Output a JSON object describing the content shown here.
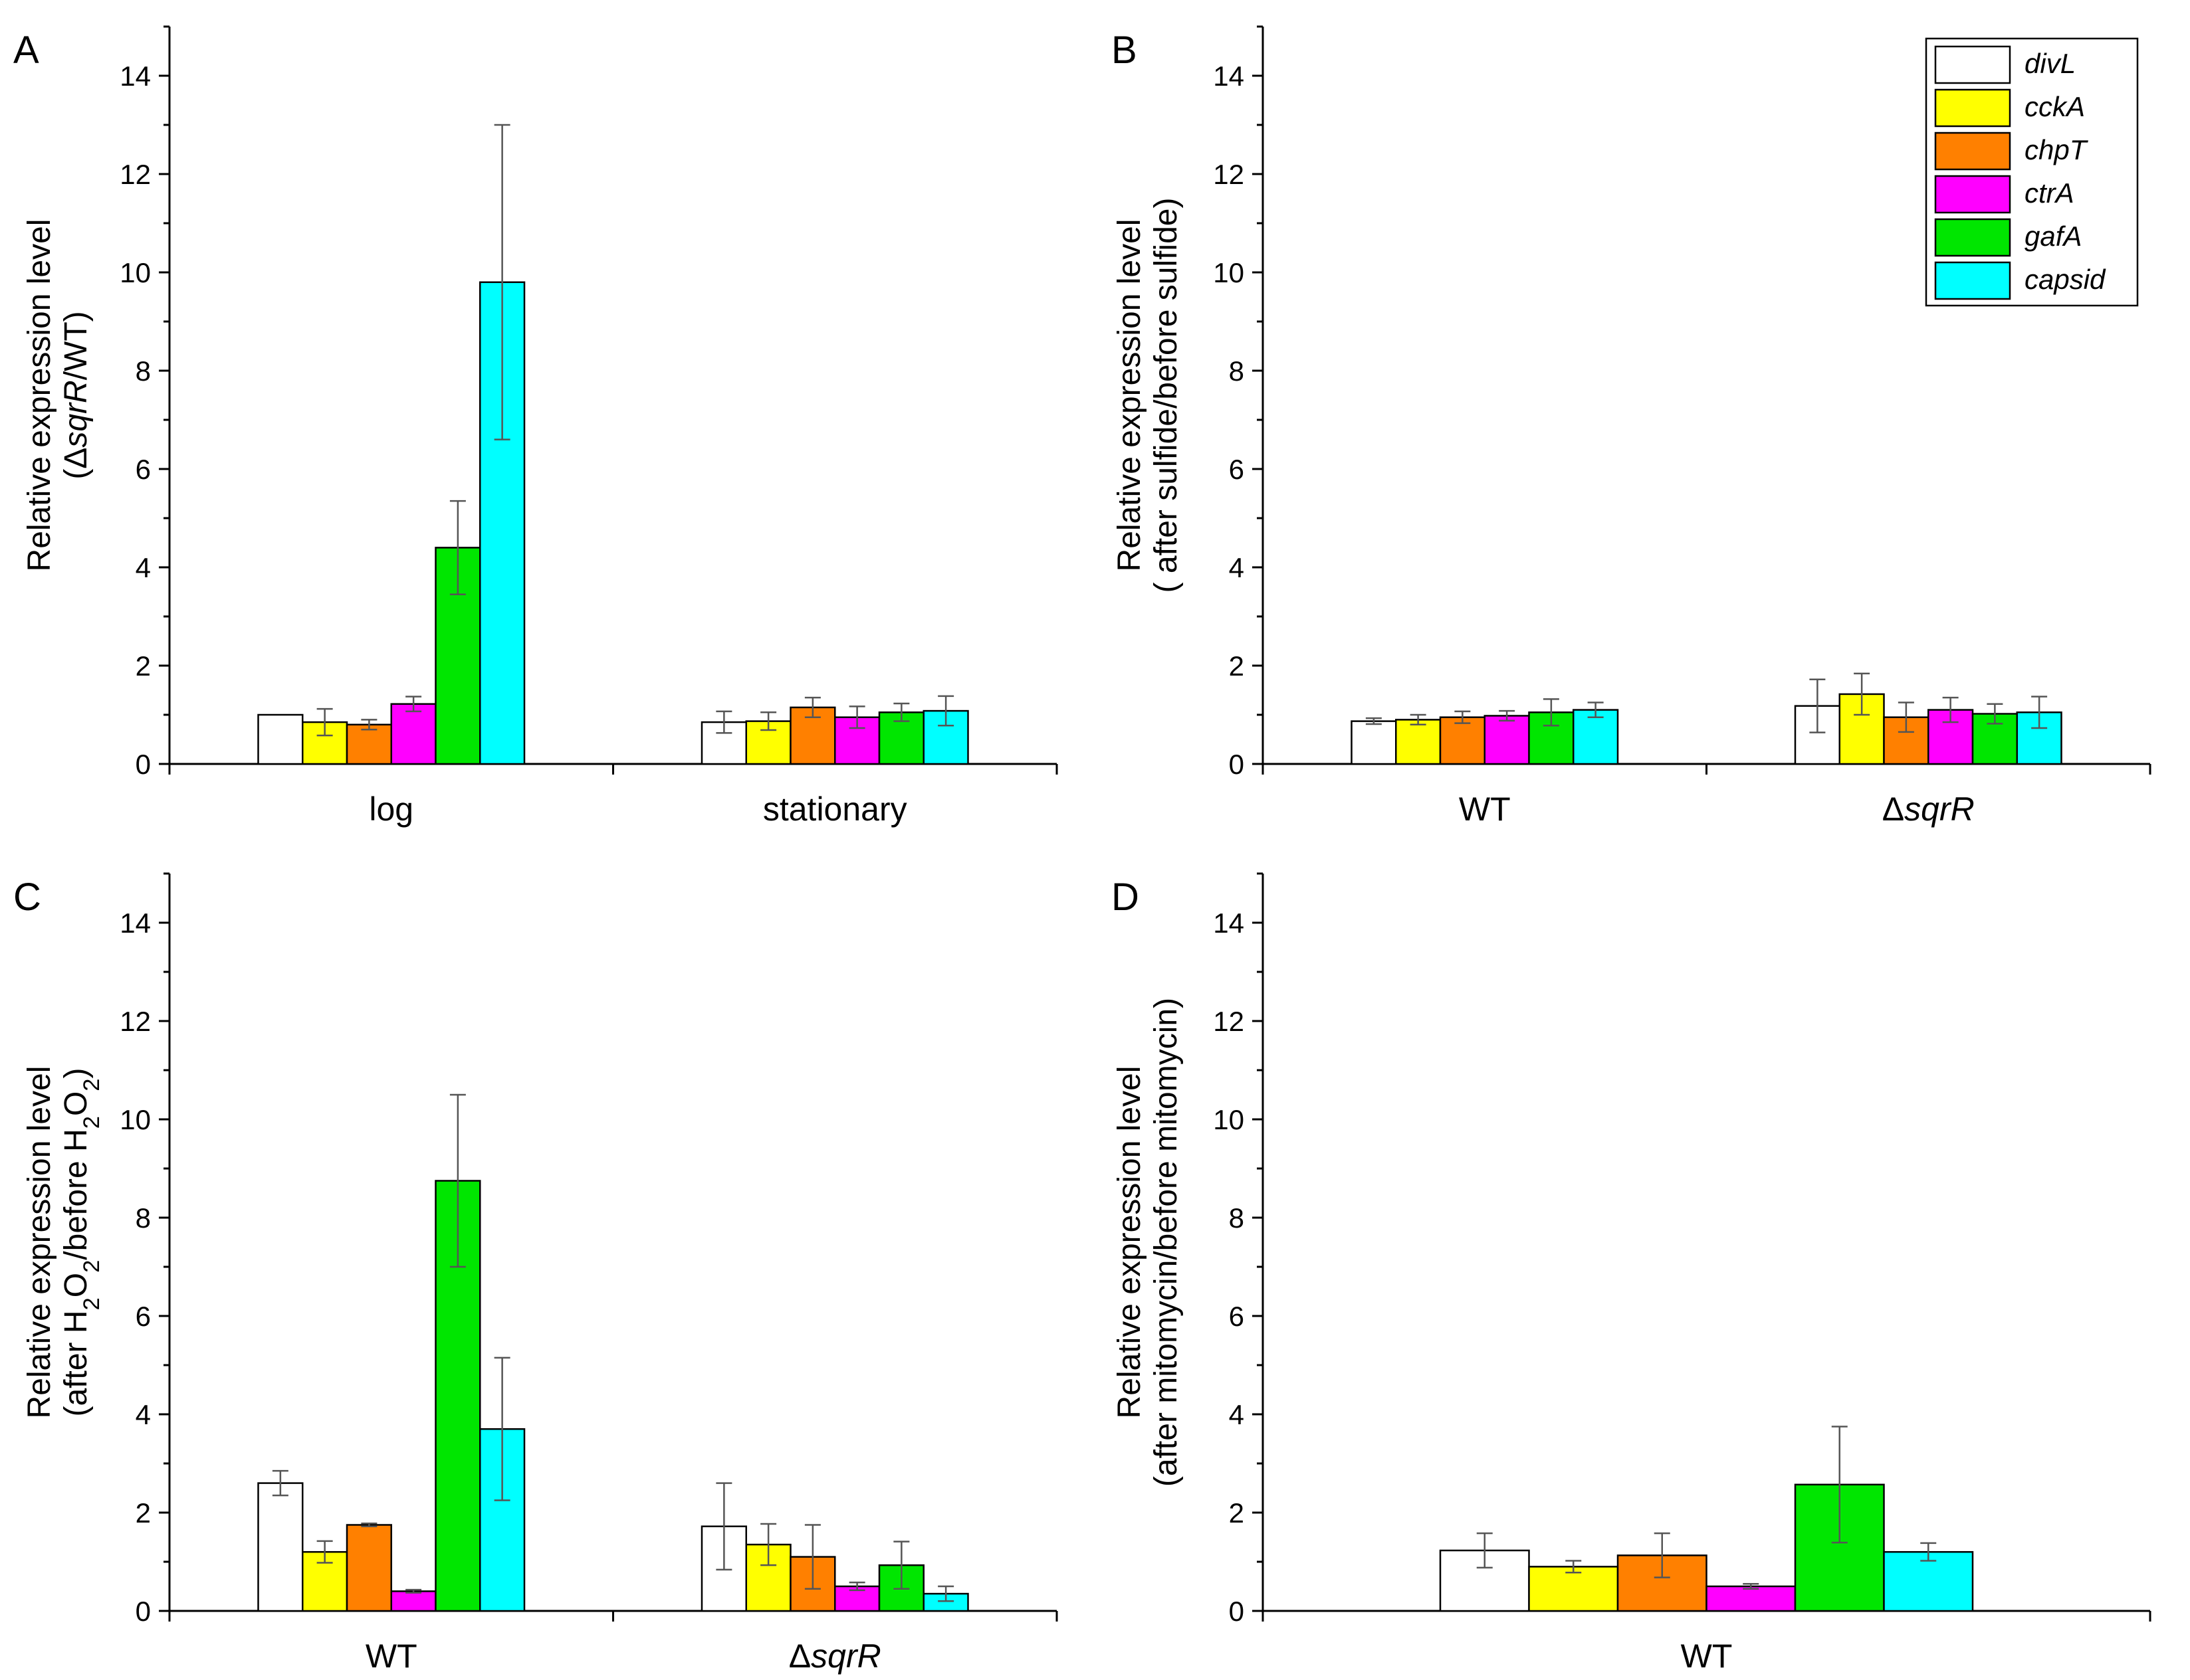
{
  "legend": {
    "genes": [
      "divL",
      "cckA",
      "chpT",
      "ctrA",
      "gafA",
      "capsid"
    ],
    "colors": [
      "#ffffff",
      "#ffff00",
      "#ff8000",
      "#ff00ff",
      "#00e600",
      "#00ffff"
    ]
  },
  "chart_data": [
    {
      "panel": "A",
      "type": "bar",
      "ylabel_lines": [
        [
          {
            "t": "Relative expression level"
          }
        ],
        [
          {
            "t": "(Δ"
          },
          {
            "t": "sqrR",
            "i": true
          },
          {
            "t": "/WT)"
          }
        ]
      ],
      "ylim": [
        0,
        15
      ],
      "yticks": [
        0,
        2,
        4,
        6,
        8,
        10,
        12,
        14
      ],
      "categories": [
        [
          {
            "t": "log"
          }
        ],
        [
          {
            "t": "stationary"
          }
        ]
      ],
      "series": [
        {
          "name": "divL",
          "values": [
            1.0,
            0.85
          ],
          "errors": [
            0.0,
            0.22
          ]
        },
        {
          "name": "cckA",
          "values": [
            0.85,
            0.87
          ],
          "errors": [
            0.27,
            0.18
          ]
        },
        {
          "name": "chpT",
          "values": [
            0.8,
            1.15
          ],
          "errors": [
            0.1,
            0.2
          ]
        },
        {
          "name": "ctrA",
          "values": [
            1.22,
            0.95
          ],
          "errors": [
            0.15,
            0.22
          ]
        },
        {
          "name": "gafA",
          "values": [
            4.4,
            1.05
          ],
          "errors": [
            0.95,
            0.18
          ]
        },
        {
          "name": "capsid",
          "values": [
            9.8,
            1.08
          ],
          "errors": [
            3.2,
            0.3
          ]
        }
      ],
      "legend": true
    },
    {
      "panel": "B",
      "type": "bar",
      "ylabel_lines": [
        [
          {
            "t": "Relative expression level"
          }
        ],
        [
          {
            "t": "( after sulfide/before sulfide)"
          }
        ]
      ],
      "ylim": [
        0,
        15
      ],
      "yticks": [
        0,
        2,
        4,
        6,
        8,
        10,
        12,
        14
      ],
      "categories": [
        [
          {
            "t": "WT"
          }
        ],
        [
          {
            "t": "Δ"
          },
          {
            "t": "sqrR",
            "i": true
          }
        ]
      ],
      "series": [
        {
          "name": "divL",
          "values": [
            0.87,
            1.18
          ],
          "errors": [
            0.06,
            0.54
          ]
        },
        {
          "name": "cckA",
          "values": [
            0.9,
            1.42
          ],
          "errors": [
            0.1,
            0.42
          ]
        },
        {
          "name": "chpT",
          "values": [
            0.95,
            0.95
          ],
          "errors": [
            0.12,
            0.3
          ]
        },
        {
          "name": "ctrA",
          "values": [
            0.98,
            1.1
          ],
          "errors": [
            0.1,
            0.25
          ]
        },
        {
          "name": "gafA",
          "values": [
            1.05,
            1.02
          ],
          "errors": [
            0.27,
            0.2
          ]
        },
        {
          "name": "capsid",
          "values": [
            1.1,
            1.05
          ],
          "errors": [
            0.15,
            0.32
          ]
        }
      ],
      "legend": false
    },
    {
      "panel": "C",
      "type": "bar",
      "ylabel_lines": [
        [
          {
            "t": "Relative expression level"
          }
        ],
        [
          {
            "t": "(after H"
          },
          {
            "t": "2",
            "s": true
          },
          {
            "t": "O"
          },
          {
            "t": "2",
            "s": true
          },
          {
            "t": "/before H"
          },
          {
            "t": "2",
            "s": true
          },
          {
            "t": "O"
          },
          {
            "t": "2",
            "s": true
          },
          {
            "t": ")"
          }
        ]
      ],
      "ylim": [
        0,
        15
      ],
      "yticks": [
        0,
        2,
        4,
        6,
        8,
        10,
        12,
        14
      ],
      "categories": [
        [
          {
            "t": "WT"
          }
        ],
        [
          {
            "t": "Δ"
          },
          {
            "t": "sqrR",
            "i": true
          }
        ]
      ],
      "series": [
        {
          "name": "divL",
          "values": [
            2.6,
            1.72
          ],
          "errors": [
            0.25,
            0.88
          ]
        },
        {
          "name": "cckA",
          "values": [
            1.2,
            1.35
          ],
          "errors": [
            0.22,
            0.42
          ]
        },
        {
          "name": "chpT",
          "values": [
            1.75,
            1.1
          ],
          "errors": [
            0.03,
            0.65
          ]
        },
        {
          "name": "ctrA",
          "values": [
            0.4,
            0.5
          ],
          "errors": [
            0.03,
            0.08
          ]
        },
        {
          "name": "gafA",
          "values": [
            8.75,
            0.93
          ],
          "errors": [
            1.75,
            0.48
          ]
        },
        {
          "name": "capsid",
          "values": [
            3.7,
            0.35
          ],
          "errors": [
            1.45,
            0.15
          ]
        }
      ],
      "legend": false
    },
    {
      "panel": "D",
      "type": "bar",
      "ylabel_lines": [
        [
          {
            "t": "Relative expression level"
          }
        ],
        [
          {
            "t": "(after mitomycin/before mitomycin)"
          }
        ]
      ],
      "ylim": [
        0,
        15
      ],
      "yticks": [
        0,
        2,
        4,
        6,
        8,
        10,
        12,
        14
      ],
      "categories": [
        [
          {
            "t": "WT"
          }
        ]
      ],
      "series": [
        {
          "name": "divL",
          "values": [
            1.23
          ],
          "errors": [
            0.35
          ]
        },
        {
          "name": "cckA",
          "values": [
            0.9
          ],
          "errors": [
            0.12
          ]
        },
        {
          "name": "chpT",
          "values": [
            1.13
          ],
          "errors": [
            0.45
          ]
        },
        {
          "name": "ctrA",
          "values": [
            0.5
          ],
          "errors": [
            0.05
          ]
        },
        {
          "name": "gafA",
          "values": [
            2.57
          ],
          "errors": [
            1.18
          ]
        },
        {
          "name": "capsid",
          "values": [
            1.2
          ],
          "errors": [
            0.18
          ]
        }
      ],
      "legend": false
    }
  ]
}
